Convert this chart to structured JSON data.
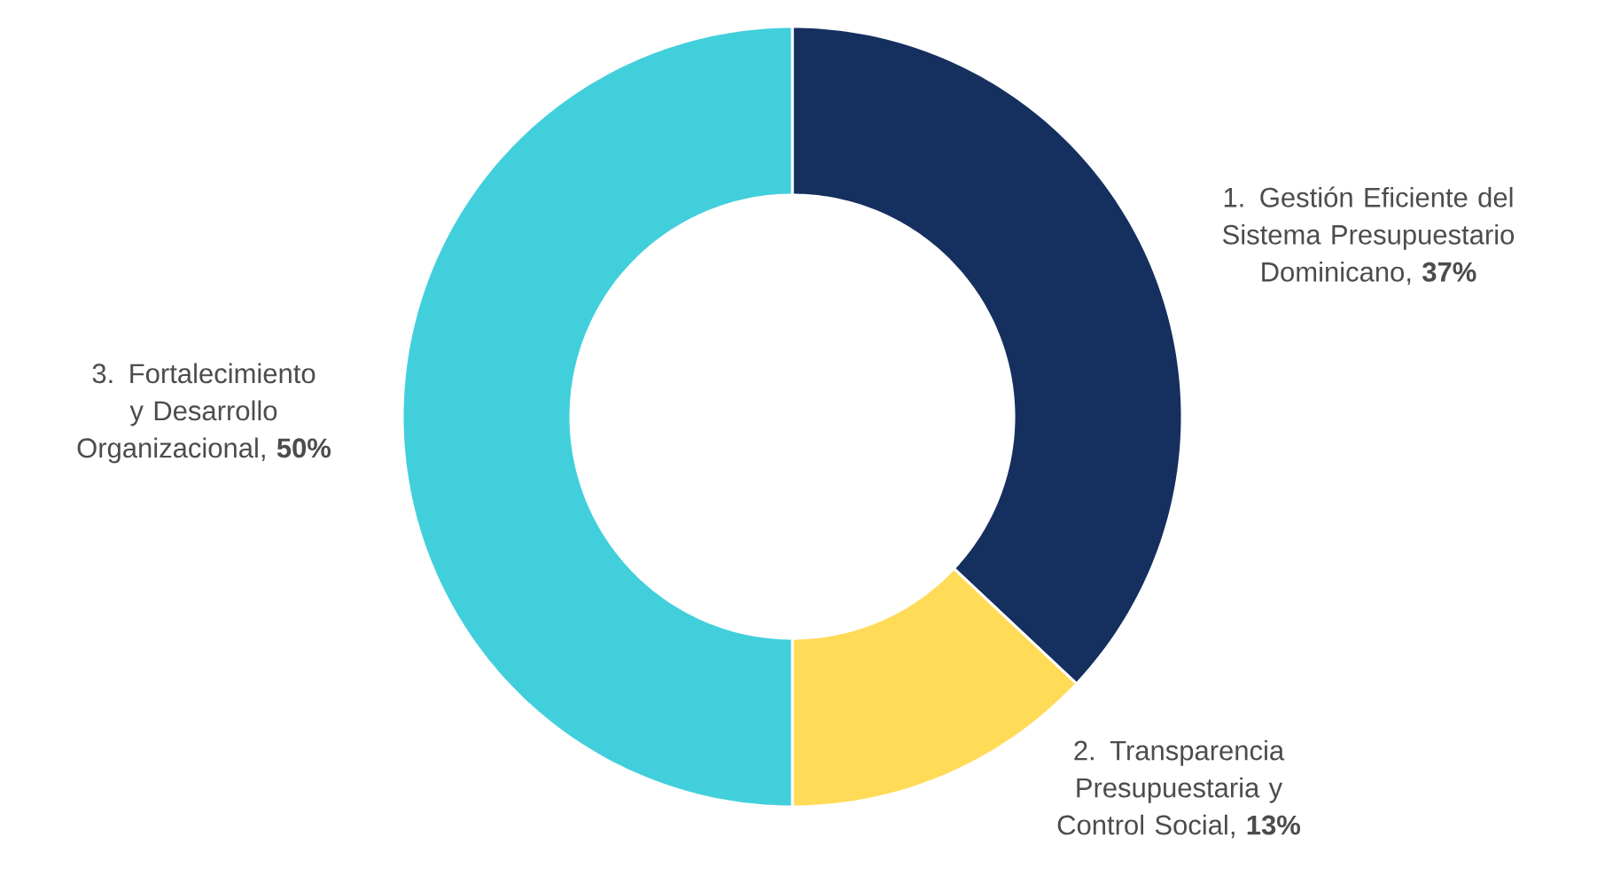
{
  "chart_data": {
    "type": "donut",
    "categories": [
      "1. Gestión Eficiente del Sistema Presupuestario Dominicano",
      "2. Transparencia Presupuestaria y Control Social",
      "3. Fortalecimiento y Desarrollo Organizacional"
    ],
    "values": [
      37,
      13,
      50
    ],
    "colors": [
      "#15305f",
      "#ffdb58",
      "#42cfdc"
    ],
    "value_labels": [
      ", **37%**",
      ", **13%**",
      ", **50%**"
    ]
  }
}
